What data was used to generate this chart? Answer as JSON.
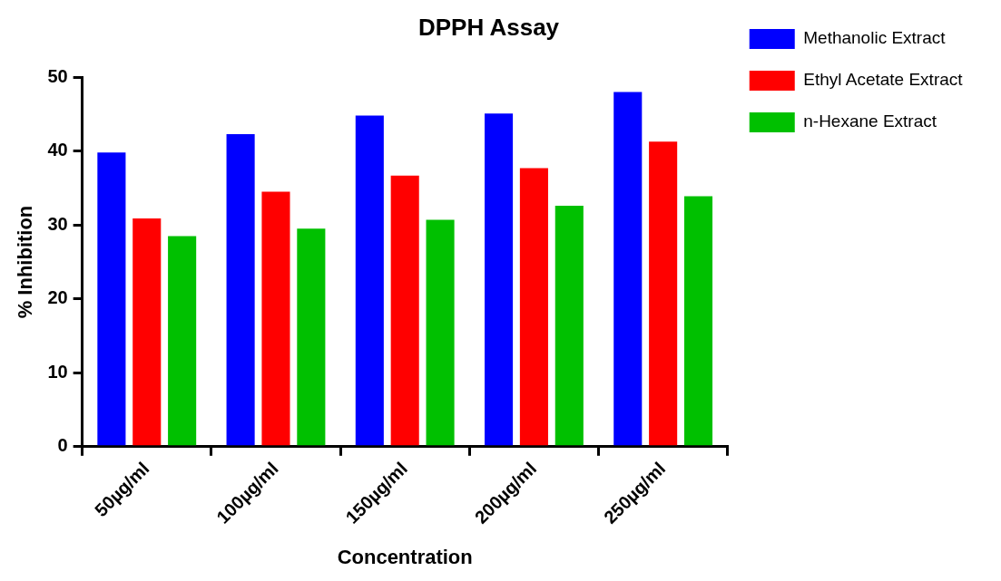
{
  "chart_data": {
    "type": "bar",
    "title": "DPPH Assay",
    "xlabel": "Concentration",
    "ylabel": "% Inhibition",
    "categories": [
      "50µg/ml",
      "100µg/ml",
      "150µg/ml",
      "200µg/ml",
      "250µg/ml"
    ],
    "series": [
      {
        "name": "Methanolic Extract",
        "color": "#0000ff",
        "values": [
          39.8,
          42.3,
          44.8,
          45.1,
          48.0
        ]
      },
      {
        "name": "Ethyl Acetate Extract",
        "color": "#ff0000",
        "values": [
          30.9,
          34.5,
          36.7,
          37.7,
          41.3
        ]
      },
      {
        "name": "n-Hexane Extract",
        "color": "#00c000",
        "values": [
          28.5,
          29.5,
          30.7,
          32.6,
          33.9
        ]
      }
    ],
    "ylim": [
      0,
      50
    ],
    "yticks": [
      0,
      10,
      20,
      30,
      40,
      50
    ],
    "grid": false,
    "legend": "right"
  }
}
